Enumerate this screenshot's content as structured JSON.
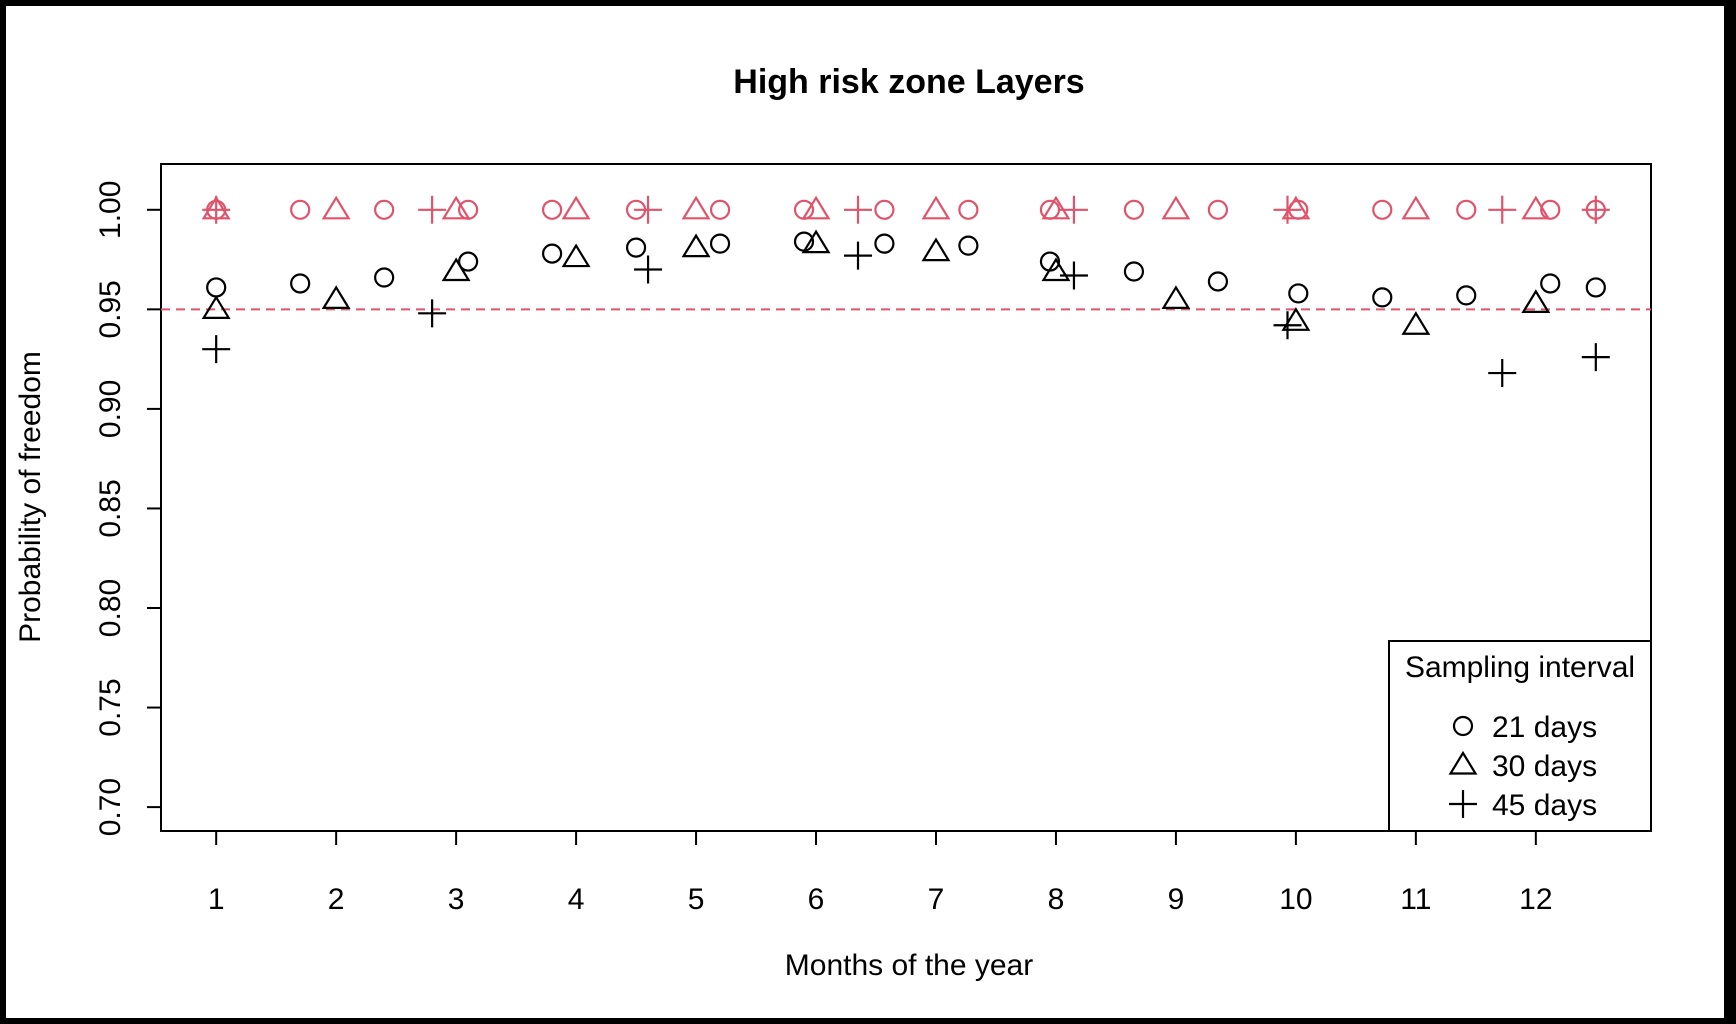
{
  "chart_data": {
    "type": "scatter",
    "title": "High risk zone Layers",
    "xlabel": "Months of the year",
    "ylabel": "Probability of freedom",
    "xlim": [
      0.54,
      12.96
    ],
    "ylim": [
      0.688,
      1.023
    ],
    "x_ticks": [
      "1",
      "2",
      "3",
      "4",
      "5",
      "6",
      "7",
      "8",
      "9",
      "10",
      "11",
      "12"
    ],
    "y_ticks": [
      "0.70",
      "0.75",
      "0.80",
      "0.85",
      "0.90",
      "0.95",
      "1.00"
    ],
    "reference_line": {
      "y": 0.95,
      "style": "dashed",
      "color": "#DF536B"
    },
    "colors": {
      "black": "#000000",
      "red": "#DF536B"
    },
    "series": [
      {
        "name": "21 days",
        "shape": "circle",
        "color": "#000000",
        "points": [
          [
            1,
            0.961
          ],
          [
            1.7,
            0.963
          ],
          [
            2.4,
            0.966
          ],
          [
            3.1,
            0.974
          ],
          [
            3.8,
            0.978
          ],
          [
            4.5,
            0.981
          ],
          [
            5.2,
            0.983
          ],
          [
            5.9,
            0.984
          ],
          [
            6.57,
            0.983
          ],
          [
            7.27,
            0.982
          ],
          [
            7.95,
            0.974
          ],
          [
            8.65,
            0.969
          ],
          [
            9.35,
            0.964
          ],
          [
            10.02,
            0.958
          ],
          [
            10.72,
            0.956
          ],
          [
            11.42,
            0.957
          ],
          [
            12.12,
            0.963
          ],
          [
            12.5,
            0.961
          ]
        ]
      },
      {
        "name": "30 days",
        "shape": "triangle",
        "color": "#000000",
        "points": [
          [
            1,
            0.95
          ],
          [
            2,
            0.955
          ],
          [
            3,
            0.969
          ],
          [
            4,
            0.976
          ],
          [
            5,
            0.981
          ],
          [
            6,
            0.983
          ],
          [
            7,
            0.979
          ],
          [
            8,
            0.969
          ],
          [
            9,
            0.955
          ],
          [
            10,
            0.944
          ],
          [
            11,
            0.942
          ],
          [
            12,
            0.953
          ]
        ]
      },
      {
        "name": "45 days",
        "shape": "plus",
        "color": "#000000",
        "points": [
          [
            1,
            0.93
          ],
          [
            2.8,
            0.948
          ],
          [
            4.6,
            0.97
          ],
          [
            6.35,
            0.977
          ],
          [
            8.15,
            0.967
          ],
          [
            9.93,
            0.942
          ],
          [
            11.72,
            0.918
          ],
          [
            12.5,
            0.926
          ]
        ]
      },
      {
        "name": "21 days",
        "shape": "circle",
        "color": "#DF536B",
        "points": [
          [
            1,
            1.0
          ],
          [
            1.7,
            1.0
          ],
          [
            2.4,
            1.0
          ],
          [
            3.1,
            1.0
          ],
          [
            3.8,
            1.0
          ],
          [
            4.5,
            1.0
          ],
          [
            5.2,
            1.0
          ],
          [
            5.9,
            1.0
          ],
          [
            6.57,
            1.0
          ],
          [
            7.27,
            1.0
          ],
          [
            7.95,
            1.0
          ],
          [
            8.65,
            1.0
          ],
          [
            9.35,
            1.0
          ],
          [
            10.02,
            1.0
          ],
          [
            10.72,
            1.0
          ],
          [
            11.42,
            1.0
          ],
          [
            12.12,
            1.0
          ],
          [
            12.5,
            1.0
          ]
        ]
      },
      {
        "name": "30 days",
        "shape": "triangle",
        "color": "#DF536B",
        "points": [
          [
            1,
            1.0
          ],
          [
            2,
            1.0
          ],
          [
            3,
            1.0
          ],
          [
            4,
            1.0
          ],
          [
            5,
            1.0
          ],
          [
            6,
            1.0
          ],
          [
            7,
            1.0
          ],
          [
            8,
            1.0
          ],
          [
            9,
            1.0
          ],
          [
            10,
            1.0
          ],
          [
            11,
            1.0
          ],
          [
            12,
            1.0
          ]
        ]
      },
      {
        "name": "45 days",
        "shape": "plus",
        "color": "#DF536B",
        "points": [
          [
            1,
            1.0
          ],
          [
            2.8,
            1.0
          ],
          [
            4.6,
            1.0
          ],
          [
            6.35,
            1.0
          ],
          [
            8.15,
            1.0
          ],
          [
            9.93,
            1.0
          ],
          [
            11.72,
            1.0
          ],
          [
            12.5,
            1.0
          ]
        ]
      }
    ],
    "legend": {
      "title": "Sampling interval",
      "position": "bottom-right",
      "entries": [
        {
          "shape": "circle",
          "label": "21 days"
        },
        {
          "shape": "triangle",
          "label": "30 days"
        },
        {
          "shape": "plus",
          "label": "45 days"
        }
      ]
    },
    "grid": false
  }
}
